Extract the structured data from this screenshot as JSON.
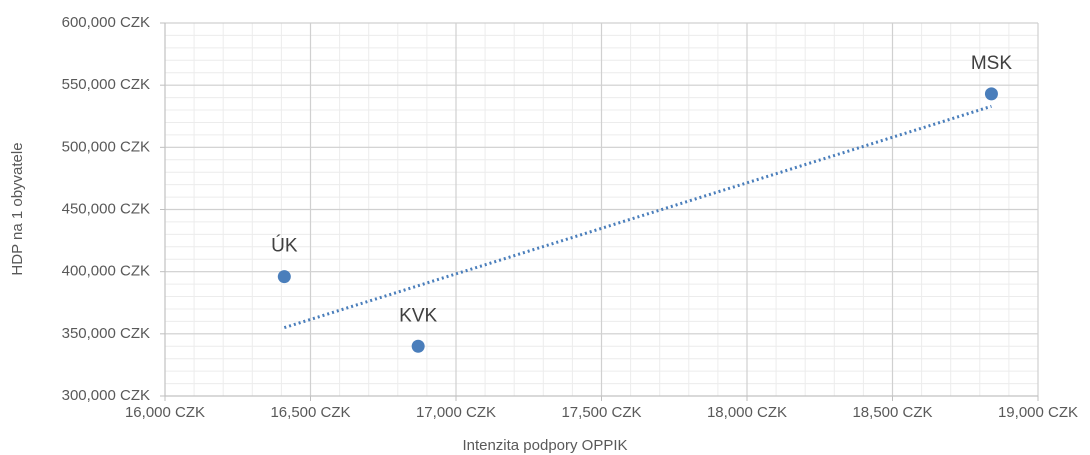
{
  "chart_data": {
    "type": "scatter",
    "xlabel": "Intenzita podpory OPPIK",
    "ylabel": "HDP na 1 obyvatele",
    "series": [
      {
        "color": "#4a7ebb",
        "labels": [
          "ÚK",
          "KVK",
          "MSK"
        ],
        "x": [
          16410,
          16870,
          18840
        ],
        "y": [
          396000,
          340000,
          543000
        ]
      }
    ],
    "trendline": {
      "color": "#4a7ebb",
      "x": [
        16410,
        18840
      ],
      "y": [
        355000,
        533000
      ]
    },
    "xlim": [
      16000,
      19000
    ],
    "xticks": [
      {
        "value": 16000,
        "label": "16,000 CZK"
      },
      {
        "value": 16500,
        "label": "16,500 CZK"
      },
      {
        "value": 17000,
        "label": "17,000 CZK"
      },
      {
        "value": 17500,
        "label": "17,500 CZK"
      },
      {
        "value": 18000,
        "label": "18,000 CZK"
      },
      {
        "value": 18500,
        "label": "18,500 CZK"
      },
      {
        "value": 19000,
        "label": "19,000 CZK"
      }
    ],
    "ylim": [
      300000,
      600000
    ],
    "yticks": [
      {
        "value": 300000,
        "label": "300,000 CZK"
      },
      {
        "value": 350000,
        "label": "350,000 CZK"
      },
      {
        "value": 400000,
        "label": "400,000 CZK"
      },
      {
        "value": 450000,
        "label": "450,000 CZK"
      },
      {
        "value": 500000,
        "label": "500,000 CZK"
      },
      {
        "value": 550000,
        "label": "550,000 CZK"
      },
      {
        "value": 600000,
        "label": "600,000 CZK"
      }
    ],
    "grid": true,
    "minor_xstep": 100,
    "minor_ystep": 10000
  }
}
